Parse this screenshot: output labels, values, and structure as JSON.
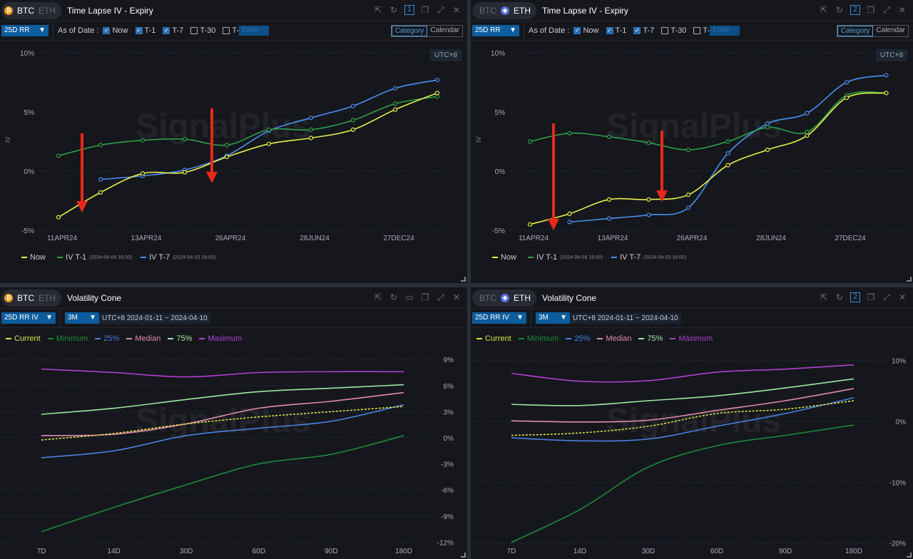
{
  "colors": {
    "now": "#e8f04a",
    "t1": "#2ea04a",
    "t7": "#4a8ff0",
    "current": "#d9e24a",
    "minimum": "#1f8a3a",
    "p25": "#4a7fe0",
    "median": "#e08aaa",
    "p75": "#9ee6a0",
    "maximum": "#b040d0",
    "arrow": "#e8281a"
  },
  "watermark": "SignalPlus",
  "panels": [
    {
      "coin_active": "BTC",
      "coin_other": "ETH",
      "coin_icon": "bitcoin-icon",
      "title": "Time Lapse IV - Expiry",
      "badge": "1",
      "metric": "25D RR",
      "as_of_label": "As of Date :",
      "checks": [
        {
          "label": "Now",
          "checked": true
        },
        {
          "label": "T-1",
          "checked": true
        },
        {
          "label": "T-7",
          "checked": true
        },
        {
          "label": "T-30",
          "checked": false
        },
        {
          "label": "T-",
          "checked": false
        }
      ],
      "enter_placeholder": "Enter",
      "modes": [
        "Category",
        "Calendar"
      ],
      "active_mode": "Category",
      "timezone": "UTC+8",
      "legend": [
        {
          "label": "Now",
          "sub": ""
        },
        {
          "label": "IV T-1",
          "sub": "(2024-04-09 16:00)"
        },
        {
          "label": "IV T-7",
          "sub": "(2024-04-03 16:00)"
        }
      ]
    },
    {
      "coin_active": "ETH",
      "coin_other": "BTC",
      "coin_icon": "ethereum-icon",
      "title": "Time Lapse IV - Expiry",
      "badge": "2",
      "metric": "25D RR",
      "as_of_label": "As of Date :",
      "checks": [
        {
          "label": "Now",
          "checked": true
        },
        {
          "label": "T-1",
          "checked": true
        },
        {
          "label": "T-7",
          "checked": true
        },
        {
          "label": "T-30",
          "checked": false
        },
        {
          "label": "T-",
          "checked": false
        }
      ],
      "enter_placeholder": "Enter",
      "modes": [
        "Category",
        "Calendar"
      ],
      "active_mode": "Category",
      "timezone": "UTC+8",
      "legend": [
        {
          "label": "Now",
          "sub": ""
        },
        {
          "label": "IV T-1",
          "sub": "(2024-04-09 16:00)"
        },
        {
          "label": "IV T-7",
          "sub": "(2024-04-03 16:00)"
        }
      ]
    },
    {
      "coin_active": "BTC",
      "coin_other": "ETH",
      "title": "Volatility Cone",
      "metric": "25D RR IV",
      "period": "3M",
      "range": "UTC+8 2024-01-11 ~ 2024-04-10",
      "legend": [
        "Current",
        "Minimum",
        "25%",
        "Median",
        "75%",
        "Maximum"
      ]
    },
    {
      "coin_active": "ETH",
      "coin_other": "BTC",
      "title": "Volatility Cone",
      "badge": "2",
      "metric": "25D RR IV",
      "period": "3M",
      "range": "UTC+8 2024-01-11 ~ 2024-04-10",
      "legend": [
        "Current",
        "Minimum",
        "25%",
        "Median",
        "75%",
        "Maximum"
      ]
    }
  ],
  "chart_data": [
    {
      "type": "line",
      "title": "BTC Time Lapse IV - Expiry",
      "ylabel": "IV",
      "ylim": [
        -5,
        10
      ],
      "yticks": [
        "10%",
        "5%",
        "0%",
        "-5%"
      ],
      "ytick_values": [
        10,
        5,
        0,
        -5
      ],
      "x_labels": [
        "11APR24",
        "",
        "13APR24",
        "",
        "26APR24",
        "",
        "28JUN24",
        "",
        "27DEC24",
        ""
      ],
      "series": [
        {
          "name": "Now",
          "values": [
            -3.9,
            -1.8,
            -0.2,
            -0.1,
            1.2,
            2.3,
            2.8,
            3.5,
            5.2,
            6.6
          ]
        },
        {
          "name": "IV T-1",
          "values": [
            1.3,
            2.2,
            2.6,
            2.7,
            2.2,
            3.5,
            3.5,
            4.3,
            5.7,
            6.3
          ]
        },
        {
          "name": "IV T-7",
          "values": [
            null,
            -0.7,
            -0.4,
            0.1,
            1.3,
            3.4,
            4.5,
            5.5,
            7.0,
            7.7
          ]
        }
      ]
    },
    {
      "type": "line",
      "title": "ETH Time Lapse IV - Expiry",
      "ylabel": "IV",
      "ylim": [
        -5,
        10
      ],
      "yticks": [
        "10%",
        "5%",
        "0%",
        "-5%"
      ],
      "ytick_values": [
        10,
        5,
        0,
        -5
      ],
      "x_labels": [
        "11APR24",
        "",
        "13APR24",
        "",
        "26APR24",
        "",
        "28JUN24",
        "",
        "27DEC24",
        ""
      ],
      "series": [
        {
          "name": "Now",
          "values": [
            -4.5,
            -3.6,
            -2.4,
            -2.4,
            -2.0,
            0.5,
            1.8,
            3.0,
            6.2,
            6.6
          ]
        },
        {
          "name": "IV T-1",
          "values": [
            2.5,
            3.2,
            2.9,
            2.4,
            1.8,
            2.5,
            3.7,
            3.3,
            6.4,
            6.6
          ]
        },
        {
          "name": "IV T-7",
          "values": [
            null,
            -4.3,
            -4.0,
            -3.7,
            -3.1,
            1.5,
            4.0,
            4.9,
            7.5,
            8.1
          ]
        }
      ]
    },
    {
      "type": "line",
      "title": "BTC Volatility Cone",
      "ylim": [
        -12,
        9
      ],
      "yticks": [
        "9%",
        "6%",
        "3%",
        "0%",
        "-3%",
        "-6%",
        "-9%",
        "-12%"
      ],
      "ytick_values": [
        9,
        6,
        3,
        0,
        -3,
        -6,
        -9,
        -12
      ],
      "categories": [
        "7D",
        "14D",
        "30D",
        "60D",
        "90D",
        "180D"
      ],
      "series": [
        {
          "name": "Maximum",
          "values": [
            7.9,
            7.5,
            7.0,
            7.5,
            7.6,
            7.6
          ]
        },
        {
          "name": "75%",
          "values": [
            2.7,
            3.4,
            4.4,
            5.3,
            5.7,
            6.1
          ]
        },
        {
          "name": "Median",
          "values": [
            0.25,
            0.4,
            1.6,
            3.4,
            4.2,
            5.2
          ]
        },
        {
          "name": "25%",
          "values": [
            -2.3,
            -1.5,
            0.25,
            1.1,
            1.9,
            3.8
          ]
        },
        {
          "name": "Minimum",
          "values": [
            -10.8,
            -8.0,
            -5.4,
            -3.0,
            -1.9,
            0.25
          ]
        },
        {
          "name": "Current",
          "values": [
            -0.25,
            0.5,
            1.6,
            2.4,
            3.0,
            3.6
          ]
        }
      ]
    },
    {
      "type": "line",
      "title": "ETH Volatility Cone",
      "ylim": [
        -20,
        10
      ],
      "yticks": [
        "10%",
        "0%",
        "-10%",
        "-20%"
      ],
      "ytick_values": [
        10,
        0,
        -10,
        -20
      ],
      "categories": [
        "7D",
        "14D",
        "30D",
        "60D",
        "90D",
        "180D"
      ],
      "series": [
        {
          "name": "Maximum",
          "values": [
            7.9,
            6.6,
            6.7,
            8.1,
            8.6,
            9.3
          ]
        },
        {
          "name": "75%",
          "values": [
            2.8,
            2.6,
            3.4,
            4.2,
            5.5,
            7.0
          ]
        },
        {
          "name": "Median",
          "values": [
            0.1,
            -0.1,
            0.2,
            1.8,
            3.4,
            5.4
          ]
        },
        {
          "name": "25%",
          "values": [
            -2.7,
            -3.2,
            -2.9,
            -0.8,
            1.3,
            3.9
          ]
        },
        {
          "name": "Minimum",
          "values": [
            -19.9,
            -14.5,
            -7.5,
            -4.0,
            -2.3,
            -0.6
          ]
        },
        {
          "name": "Current",
          "values": [
            -2.3,
            -1.9,
            -0.8,
            1.3,
            2.0,
            3.4
          ]
        }
      ]
    }
  ]
}
